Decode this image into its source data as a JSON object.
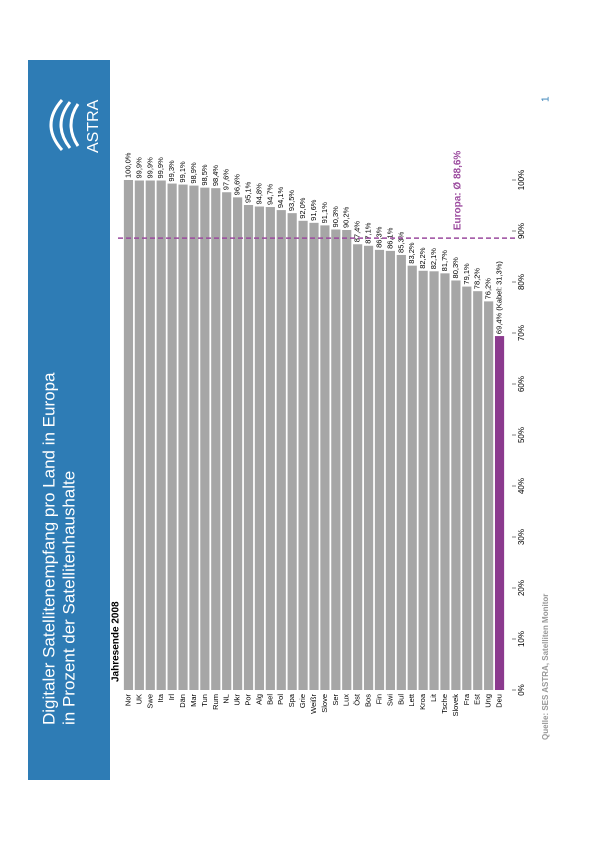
{
  "header": {
    "title_line1": "Digitaler Satellitenempfang pro Land in Europa",
    "title_line2": "in Prozent der Satellitenhaushalte",
    "logo": "ASTRA",
    "page_number": "1"
  },
  "source": "Quelle: SES ASTRA, Satelliten Monitor",
  "chart_data": {
    "type": "bar",
    "subtitle": "Jahresende 2008",
    "categories": [
      "Nor",
      "UK",
      "Swe",
      "Ita",
      "Irl",
      "Dän",
      "Mar",
      "Tun",
      "Rum",
      "NL",
      "Ukr",
      "Por",
      "Alg",
      "Bel",
      "Pol",
      "Spa",
      "Grie",
      "Weißr",
      "Slove",
      "Ser",
      "Lux",
      "Öst",
      "Bos",
      "Fin",
      "Swi",
      "Bul",
      "Lett",
      "Kroa",
      "Lit",
      "Tsche",
      "Slovek",
      "Fra",
      "Est",
      "Ung",
      "Deu"
    ],
    "values": [
      100.0,
      99.9,
      99.9,
      99.9,
      99.3,
      99.1,
      98.9,
      98.5,
      98.4,
      97.6,
      96.6,
      95.1,
      94.8,
      94.7,
      94.1,
      93.5,
      92.0,
      91.6,
      91.1,
      90.3,
      90.2,
      87.4,
      87.1,
      86.3,
      86.1,
      85.3,
      83.2,
      82.2,
      82.1,
      81.7,
      80.3,
      79.1,
      78.2,
      76.2,
      69.4
    ],
    "value_labels": [
      "100,0%",
      "99,9%",
      "99,9%",
      "99,9%",
      "99,3%",
      "99,1%",
      "98,9%",
      "98,5%",
      "98,4%",
      "97,6%",
      "96,6%",
      "95,1%",
      "94,8%",
      "94,7%",
      "94,1%",
      "93,5%",
      "92,0%",
      "91,6%",
      "91,1%",
      "90,3%",
      "90,2%",
      "87,4%",
      "87,1%",
      "86,3%",
      "86,1%",
      "85,3%",
      "83,2%",
      "82,2%",
      "82,1%",
      "81,7%",
      "80,3%",
      "79,1%",
      "78,2%",
      "76,2%",
      "69,4% (Kabel: 31,3%)"
    ],
    "colors": [
      "#a6a6a6",
      "#a6a6a6",
      "#a6a6a6",
      "#a6a6a6",
      "#a6a6a6",
      "#a6a6a6",
      "#a6a6a6",
      "#a6a6a6",
      "#a6a6a6",
      "#a6a6a6",
      "#a6a6a6",
      "#a6a6a6",
      "#a6a6a6",
      "#a6a6a6",
      "#a6a6a6",
      "#a6a6a6",
      "#a6a6a6",
      "#a6a6a6",
      "#a6a6a6",
      "#a6a6a6",
      "#a6a6a6",
      "#a6a6a6",
      "#a6a6a6",
      "#a6a6a6",
      "#a6a6a6",
      "#a6a6a6",
      "#a6a6a6",
      "#a6a6a6",
      "#a6a6a6",
      "#a6a6a6",
      "#a6a6a6",
      "#a6a6a6",
      "#a6a6a6",
      "#a6a6a6",
      "#8b3a8e"
    ],
    "ylim": [
      0,
      100
    ],
    "yticks": [
      {
        "value": 0,
        "label": "0%"
      },
      {
        "value": 10,
        "label": "10%"
      },
      {
        "value": 20,
        "label": "20%"
      },
      {
        "value": 30,
        "label": "30%"
      },
      {
        "value": 40,
        "label": "40%"
      },
      {
        "value": 50,
        "label": "50%"
      },
      {
        "value": 60,
        "label": "60%"
      },
      {
        "value": 70,
        "label": "70%"
      },
      {
        "value": 80,
        "label": "80%"
      },
      {
        "value": 90,
        "label": "90%"
      },
      {
        "value": 100,
        "label": "100%"
      }
    ],
    "average": {
      "value": 88.6,
      "label": "Europa: Ø 88,6%",
      "color": "#9b4a9e"
    }
  }
}
